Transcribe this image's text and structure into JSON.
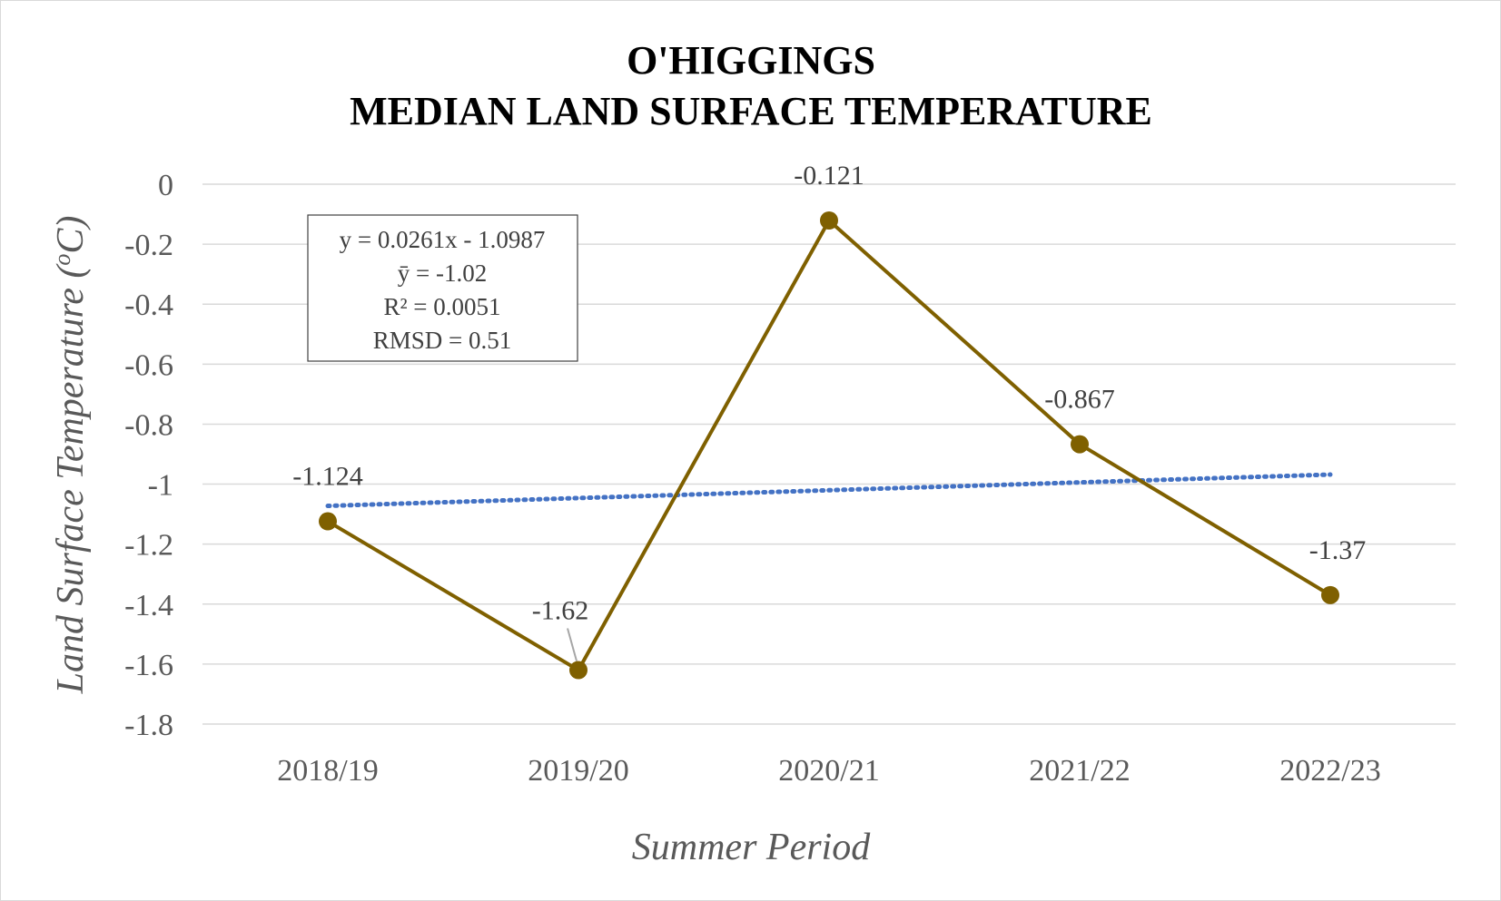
{
  "chart_data": {
    "type": "line",
    "title_line1": "O'HIGGINGS",
    "title_line2": "MEDIAN LAND SURFACE TEMPERATURE",
    "xlabel": "Summer Period",
    "ylabel_main": "Land Surface Temperature (",
    "ylabel_sup": "o",
    "ylabel_end": "C)",
    "ylim": [
      -1.8,
      0
    ],
    "yticks": [
      0,
      -0.2,
      -0.4,
      -0.6,
      -0.8,
      -1,
      -1.2,
      -1.4,
      -1.6,
      -1.8
    ],
    "ytick_labels": [
      "0",
      "-0.2",
      "-0.4",
      "-0.6",
      "-0.8",
      "-1",
      "-1.2",
      "-1.4",
      "-1.6",
      "-1.8"
    ],
    "grid": true,
    "categories": [
      "2018/19",
      "2019/20",
      "2020/21",
      "2021/22",
      "2022/23"
    ],
    "series": [
      {
        "values": [
          -1.124,
          -1.62,
          -0.121,
          -0.867,
          -1.37
        ],
        "data_labels": [
          "-1.124",
          "-1.62",
          "-0.121",
          "-0.867",
          "-1.37"
        ],
        "color": "#7f6000"
      }
    ],
    "trendline": {
      "slope": 0.0261,
      "intercept": -1.0987,
      "style": "dotted",
      "color": "#4472c4"
    },
    "stats_box": {
      "equation": "y = 0.0261x - 1.0987",
      "mean": "ȳ = -1.02",
      "r2": "R² = 0.0051",
      "rmsd": "RMSD = 0.51"
    },
    "colors": {
      "series": "#7f6000",
      "trend": "#4472c4",
      "grid": "#d9d9d9",
      "text": "#595959"
    }
  }
}
